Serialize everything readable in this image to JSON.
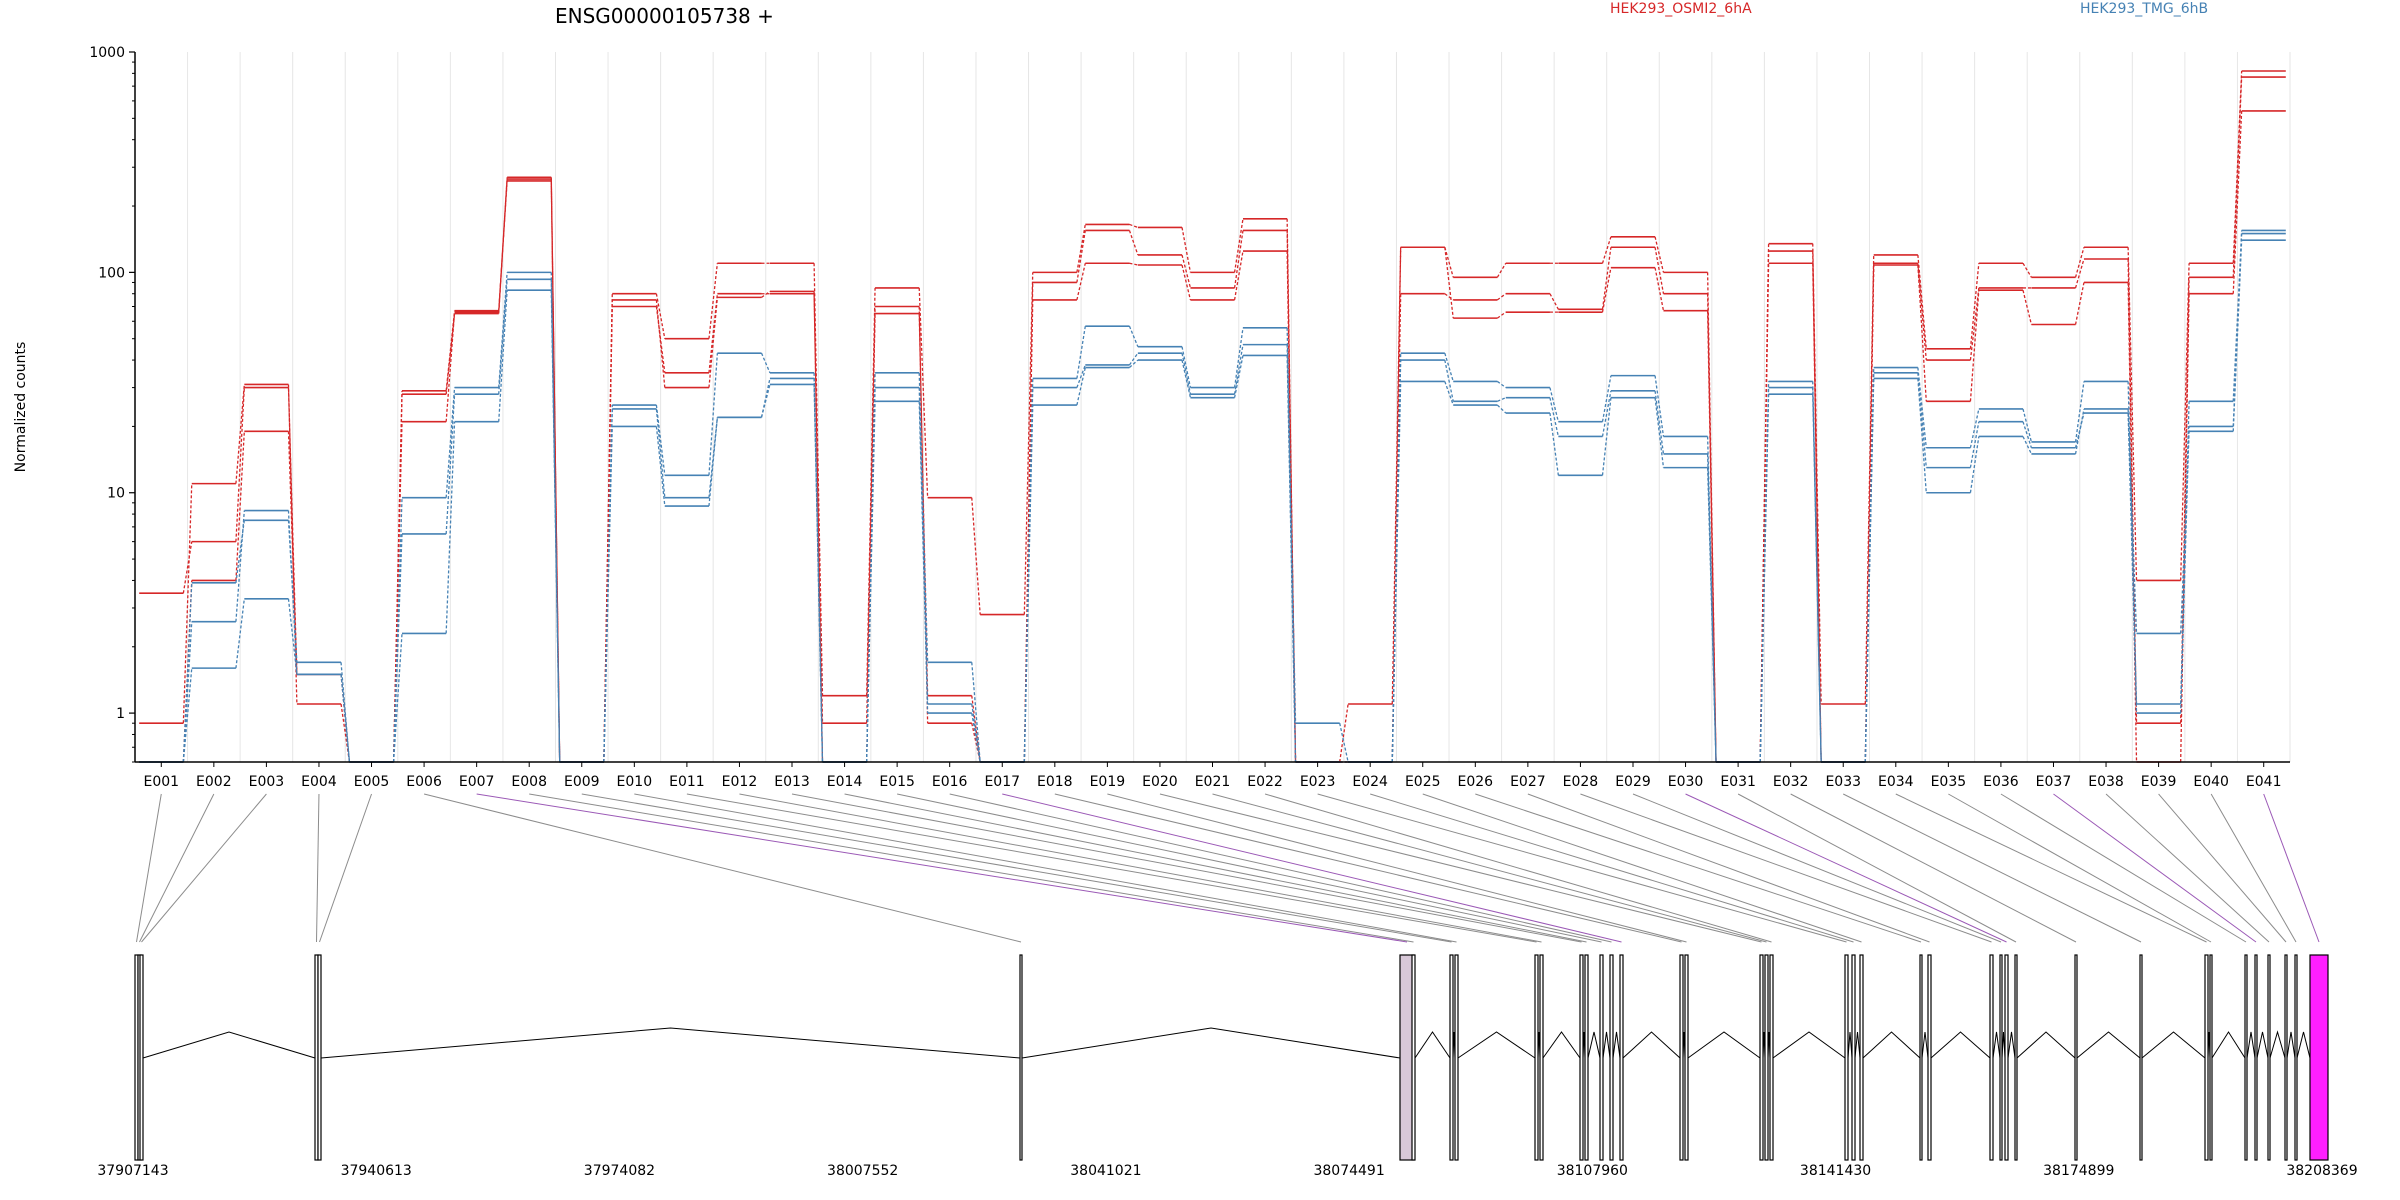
{
  "chart_data": {
    "type": "line",
    "title": "ENSG00000105738 +",
    "ylabel": "Normalized counts",
    "yscale": "log",
    "yticks": [
      1,
      10,
      100,
      1000
    ],
    "ylim": [
      0.6,
      1000
    ],
    "categories": [
      "E001",
      "E002",
      "E003",
      "E004",
      "E005",
      "E006",
      "E007",
      "E008",
      "E009",
      "E010",
      "E011",
      "E012",
      "E013",
      "E014",
      "E015",
      "E016",
      "E017",
      "E018",
      "E019",
      "E020",
      "E021",
      "E022",
      "E023",
      "E024",
      "E025",
      "E026",
      "E027",
      "E028",
      "E029",
      "E030",
      "E031",
      "E032",
      "E033",
      "E034",
      "E035",
      "E036",
      "E037",
      "E038",
      "E039",
      "E040",
      "E041"
    ],
    "legend": [
      {
        "name": "HEK293_OSMI2_6hA",
        "color": "#d62728"
      },
      {
        "name": "HEK293_TMG_6hB",
        "color": "#4682b4"
      }
    ],
    "series": [
      {
        "group": "HEK293_OSMI2_6hA",
        "color": "#d62728",
        "values": [
          3.5,
          6.0,
          30,
          1.5,
          0.6,
          28,
          65,
          270,
          0.6,
          80,
          50,
          110,
          110,
          1.2,
          85,
          9.5,
          2.8,
          100,
          165,
          160,
          100,
          175,
          0.6,
          1.1,
          130,
          95,
          110,
          110,
          145,
          100,
          0.6,
          135,
          1.1,
          120,
          45,
          110,
          95,
          130,
          4.0,
          110,
          820
        ]
      },
      {
        "group": "HEK293_OSMI2_6hA",
        "color": "#d62728",
        "values": [
          0.9,
          11,
          31,
          1.1,
          0.6,
          21,
          66,
          260,
          0.6,
          70,
          35,
          80,
          80,
          0.9,
          65,
          1.2,
          0.6,
          90,
          155,
          120,
          85,
          155,
          0.6,
          0.6,
          80,
          75,
          80,
          68,
          130,
          80,
          0.6,
          125,
          0.6,
          110,
          40,
          85,
          85,
          115,
          0.9,
          95,
          770
        ]
      },
      {
        "group": "HEK293_OSMI2_6hA",
        "color": "#d62728",
        "values": [
          0.6,
          4.0,
          19,
          1.5,
          0.6,
          29,
          67,
          265,
          0.6,
          75,
          30,
          77,
          82,
          0.6,
          70,
          0.9,
          0.6,
          75,
          110,
          108,
          75,
          125,
          0.6,
          0.6,
          130,
          62,
          66,
          66,
          105,
          67,
          0.6,
          110,
          0.6,
          108,
          26,
          83,
          58,
          90,
          0.6,
          80,
          540
        ]
      },
      {
        "group": "HEK293_TMG_6hB",
        "color": "#4682b4",
        "values": [
          0.6,
          3.9,
          7.5,
          1.7,
          0.6,
          9.5,
          30,
          100,
          0.6,
          25,
          12,
          43,
          35,
          0.6,
          35,
          1.7,
          0.6,
          33,
          57,
          46,
          30,
          56,
          0.9,
          0.6,
          43,
          32,
          30,
          21,
          34,
          18,
          0.6,
          32,
          0.6,
          37,
          16,
          24,
          17,
          32,
          1.1,
          26,
          150
        ]
      },
      {
        "group": "HEK293_TMG_6hB",
        "color": "#4682b4",
        "values": [
          0.6,
          2.6,
          8.3,
          1.5,
          0.6,
          6.5,
          28,
          93,
          0.6,
          24,
          9.5,
          22,
          33,
          0.6,
          30,
          1.1,
          0.6,
          30,
          38,
          43,
          28,
          47,
          0.6,
          0.6,
          40,
          26,
          27,
          18,
          29,
          15,
          0.6,
          30,
          0.6,
          35,
          13,
          21,
          16,
          23,
          1.0,
          20,
          155
        ]
      },
      {
        "group": "HEK293_TMG_6hB",
        "color": "#4682b4",
        "values": [
          0.6,
          1.6,
          3.3,
          1.5,
          0.6,
          2.3,
          21,
          83,
          0.6,
          20,
          8.7,
          22,
          31,
          0.6,
          26,
          1.0,
          0.6,
          25,
          37,
          40,
          27,
          42,
          0.6,
          0.6,
          32,
          25,
          23,
          12,
          27,
          13,
          0.6,
          28,
          0.6,
          33,
          10,
          18,
          15,
          24,
          2.3,
          19,
          140
        ]
      }
    ],
    "gene_model": {
      "coord_labels": [
        "37907143",
        "37940613",
        "37974082",
        "38007552",
        "38041021",
        "38074491",
        "38107960",
        "38141430",
        "38174899",
        "38208369"
      ]
    }
  }
}
